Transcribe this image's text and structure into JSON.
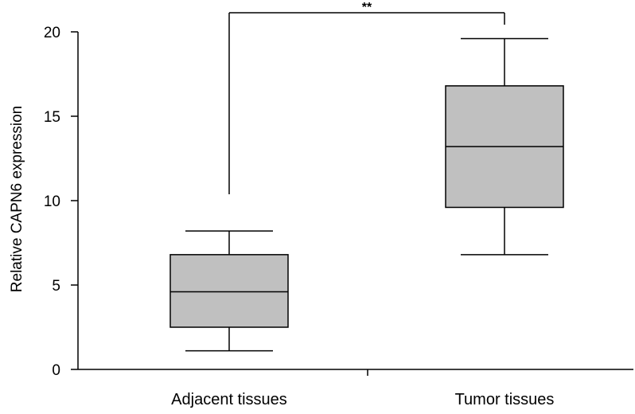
{
  "chart_data": {
    "type": "box",
    "title": "",
    "xlabel": "",
    "ylabel": "Relative CAPN6 expression",
    "ylim": [
      0,
      20
    ],
    "yticks": [
      "0",
      "5",
      "10",
      "15",
      "20"
    ],
    "categories": [
      "Adjacent tissues",
      "Tumor tissues"
    ],
    "boxes": [
      {
        "category": "Adjacent tissues",
        "whisker_low": 1.1,
        "q1": 2.5,
        "median": 4.6,
        "q3": 6.8,
        "whisker_high": 8.2
      },
      {
        "category": "Tumor tissues",
        "whisker_low": 6.8,
        "q1": 9.6,
        "median": 13.2,
        "q3": 16.8,
        "whisker_high": 19.6
      }
    ],
    "significance": {
      "label": "**",
      "between": [
        "Adjacent tissues",
        "Tumor tissues"
      ]
    },
    "box_fill": "#c0c0c0",
    "grid": false,
    "legend": "none"
  }
}
